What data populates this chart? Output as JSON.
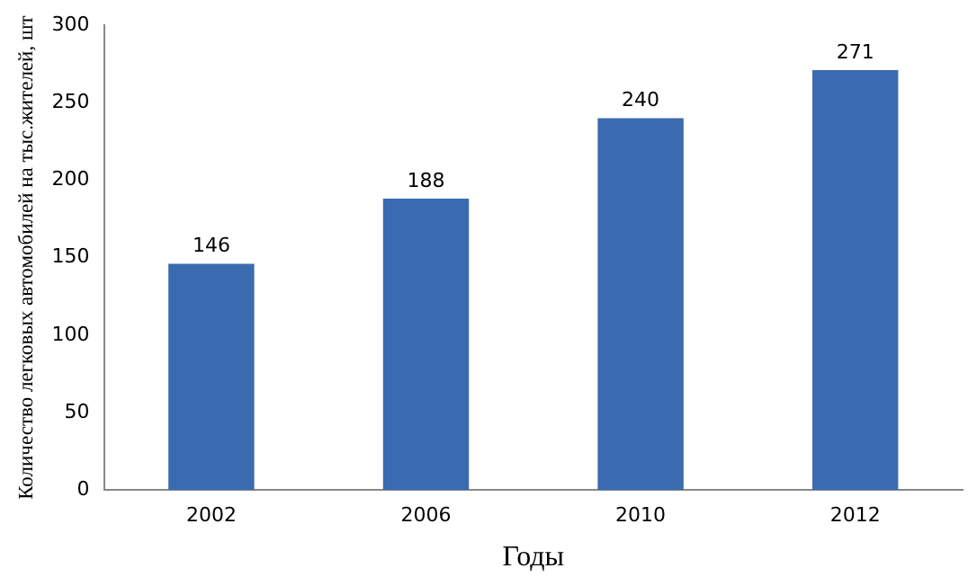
{
  "chart_data": {
    "type": "bar",
    "xlabel": "Годы",
    "ylabel": "Количество легковых автомобилей на тыс.жителей, шт",
    "categories": [
      "2002",
      "2006",
      "2010",
      "2012"
    ],
    "values": [
      146,
      188,
      240,
      271
    ],
    "color": "#3a6bb0",
    "ylim": [
      0,
      300
    ],
    "yticks": [
      0,
      50,
      100,
      150,
      200,
      250,
      300
    ],
    "grid": false,
    "legend": false,
    "data_labels": true
  }
}
